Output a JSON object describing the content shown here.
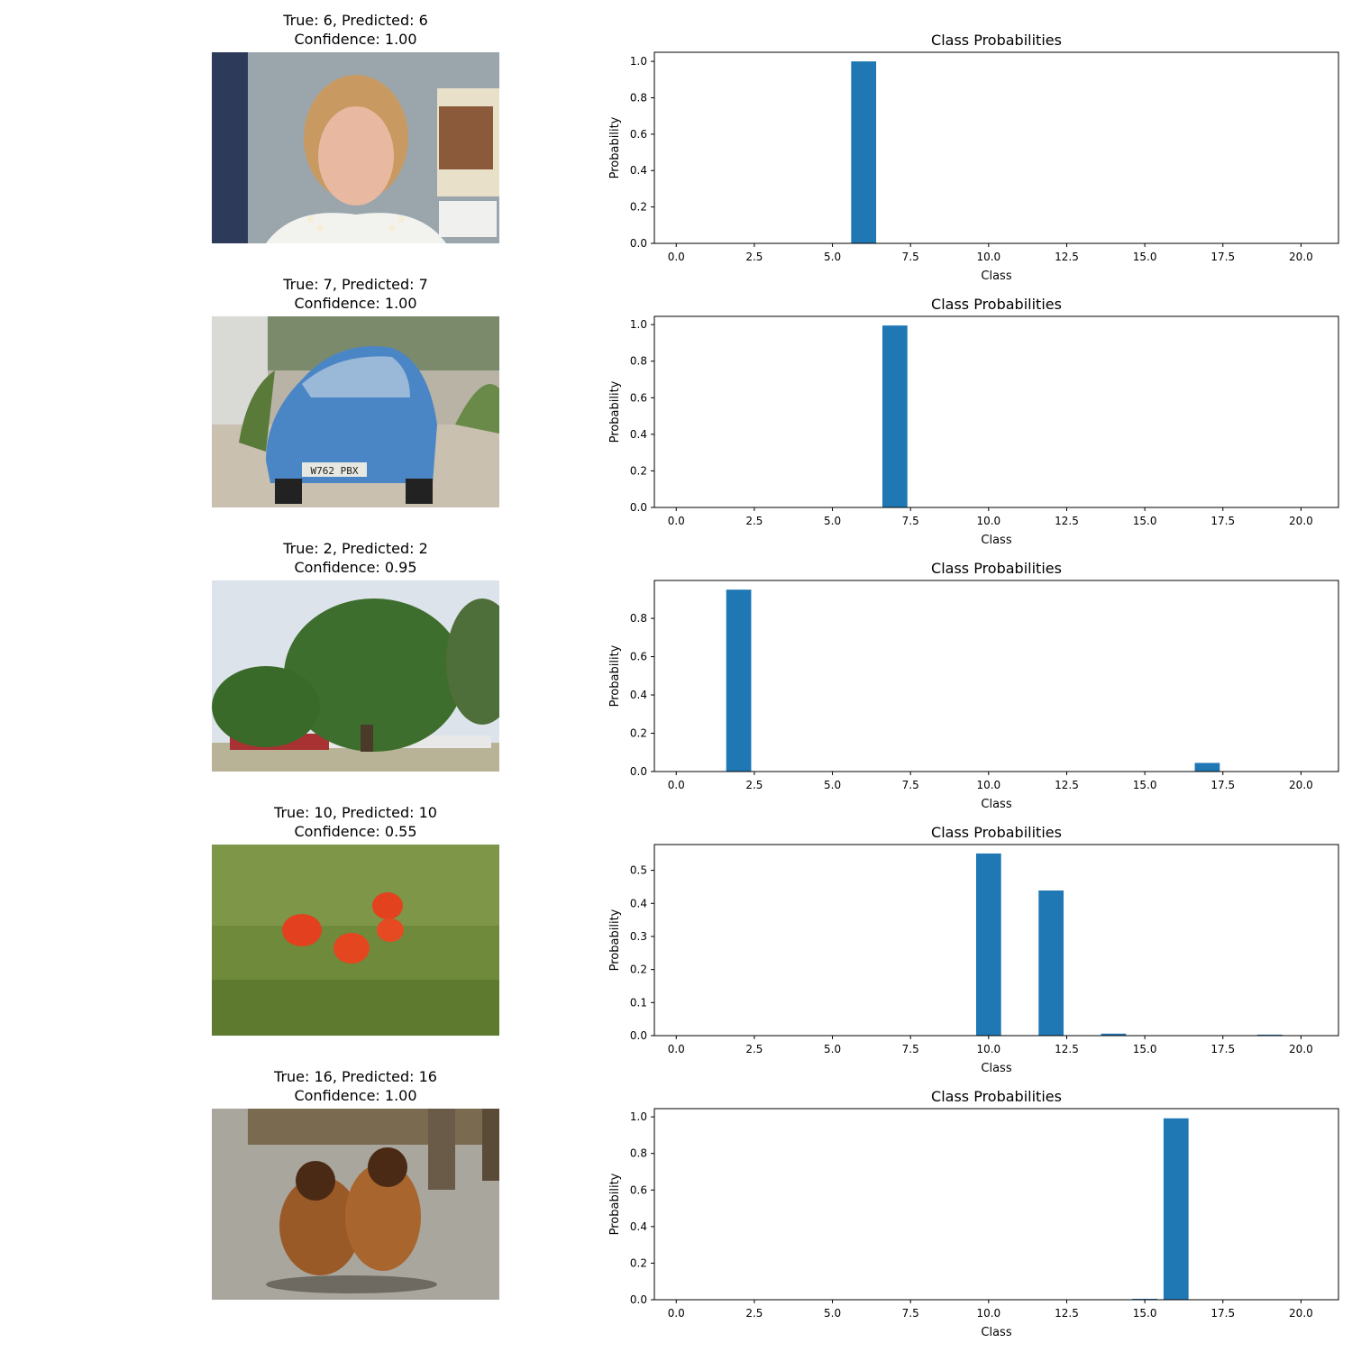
{
  "rows": [
    {
      "title_line1": "True: 6, Predicted: 6",
      "title_line2": "Confidence: 1.00",
      "image_subject": "portrait of a woman with a pearl necklace"
    },
    {
      "title_line1": "True: 7, Predicted: 7",
      "title_line2": "Confidence: 1.00",
      "image_subject": "blue hatchback car parked on gravel",
      "plate_text": "W762 PBX"
    },
    {
      "title_line1": "True: 2, Predicted: 2",
      "title_line2": "Confidence: 0.95",
      "image_subject": "large leafy tree under a cloudy sky"
    },
    {
      "title_line1": "True: 10, Predicted: 10",
      "title_line2": "Confidence: 0.55",
      "image_subject": "red poppies in green grass"
    },
    {
      "title_line1": "True: 16, Predicted: 16",
      "title_line2": "Confidence: 1.00",
      "image_subject": "two brown long-haired dogs sitting on cobblestones"
    }
  ],
  "bar_color": "#1f77b4",
  "chart_data": [
    {
      "type": "bar",
      "title": "Class Probabilities",
      "xlabel": "Class",
      "ylabel": "Probability",
      "x": [
        6
      ],
      "values": [
        1.0
      ],
      "xlim": [
        -0.7,
        21.2
      ],
      "ylim": [
        0,
        1.05
      ],
      "xticks": [
        "0.0",
        "2.5",
        "5.0",
        "7.5",
        "10.0",
        "12.5",
        "15.0",
        "17.5",
        "20.0"
      ],
      "yticks": [
        "0.0",
        "0.2",
        "0.4",
        "0.6",
        "0.8",
        "1.0"
      ]
    },
    {
      "type": "bar",
      "title": "Class Probabilities",
      "xlabel": "Class",
      "ylabel": "Probability",
      "x": [
        7
      ],
      "values": [
        0.995
      ],
      "xlim": [
        -0.7,
        21.2
      ],
      "ylim": [
        0,
        1.045
      ],
      "xticks": [
        "0.0",
        "2.5",
        "5.0",
        "7.5",
        "10.0",
        "12.5",
        "15.0",
        "17.5",
        "20.0"
      ],
      "yticks": [
        "0.0",
        "0.2",
        "0.4",
        "0.6",
        "0.8",
        "1.0"
      ]
    },
    {
      "type": "bar",
      "title": "Class Probabilities",
      "xlabel": "Class",
      "ylabel": "Probability",
      "x": [
        2,
        17
      ],
      "values": [
        0.95,
        0.045
      ],
      "xlim": [
        -0.7,
        21.2
      ],
      "ylim": [
        0,
        0.998
      ],
      "xticks": [
        "0.0",
        "2.5",
        "5.0",
        "7.5",
        "10.0",
        "12.5",
        "15.0",
        "17.5",
        "20.0"
      ],
      "yticks": [
        "0.0",
        "0.2",
        "0.4",
        "0.6",
        "0.8"
      ]
    },
    {
      "type": "bar",
      "title": "Class Probabilities",
      "xlabel": "Class",
      "ylabel": "Probability",
      "x": [
        10,
        12,
        14,
        19
      ],
      "values": [
        0.551,
        0.439,
        0.006,
        0.003
      ],
      "xlim": [
        -0.7,
        21.2
      ],
      "ylim": [
        0,
        0.578
      ],
      "xticks": [
        "0.0",
        "2.5",
        "5.0",
        "7.5",
        "10.0",
        "12.5",
        "15.0",
        "17.5",
        "20.0"
      ],
      "yticks": [
        "0.0",
        "0.1",
        "0.2",
        "0.3",
        "0.4",
        "0.5"
      ]
    },
    {
      "type": "bar",
      "title": "Class Probabilities",
      "xlabel": "Class",
      "ylabel": "Probability",
      "x": [
        15,
        16
      ],
      "values": [
        0.005,
        0.992
      ],
      "xlim": [
        -0.7,
        21.2
      ],
      "ylim": [
        0,
        1.045
      ],
      "xticks": [
        "0.0",
        "2.5",
        "5.0",
        "7.5",
        "10.0",
        "12.5",
        "15.0",
        "17.5",
        "20.0"
      ],
      "yticks": [
        "0.0",
        "0.2",
        "0.4",
        "0.6",
        "0.8",
        "1.0"
      ]
    }
  ]
}
